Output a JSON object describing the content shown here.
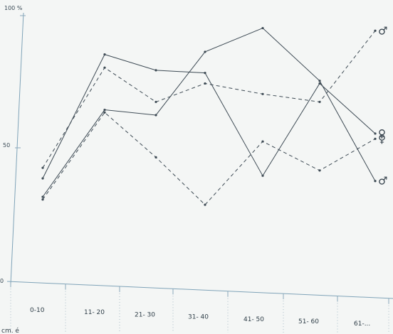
{
  "chart_data": {
    "type": "line",
    "categories": [
      "0-10",
      "11- 20",
      "21- 30",
      "31- 40",
      "41- 50",
      "51- 60",
      "61-..."
    ],
    "yticks": [
      "0",
      "50",
      "100 %"
    ],
    "ylim": [
      0,
      100
    ],
    "grid": false,
    "series": [
      {
        "label_symbol": "♀",
        "style": "solid",
        "values": [
          38,
          85,
          79,
          78,
          39,
          74,
          55
        ]
      },
      {
        "label_symbol": "♂",
        "style": "solid",
        "values": [
          31,
          64,
          62,
          86,
          95,
          75,
          37
        ]
      },
      {
        "label_symbol": "♂",
        "style": "dashed",
        "values": [
          42,
          80,
          67,
          74,
          70,
          67,
          94
        ]
      },
      {
        "label_symbol": "♀",
        "style": "dashed",
        "values": [
          30,
          63,
          46,
          28,
          52,
          41,
          53
        ]
      }
    ],
    "corner_text": "cm. é"
  }
}
